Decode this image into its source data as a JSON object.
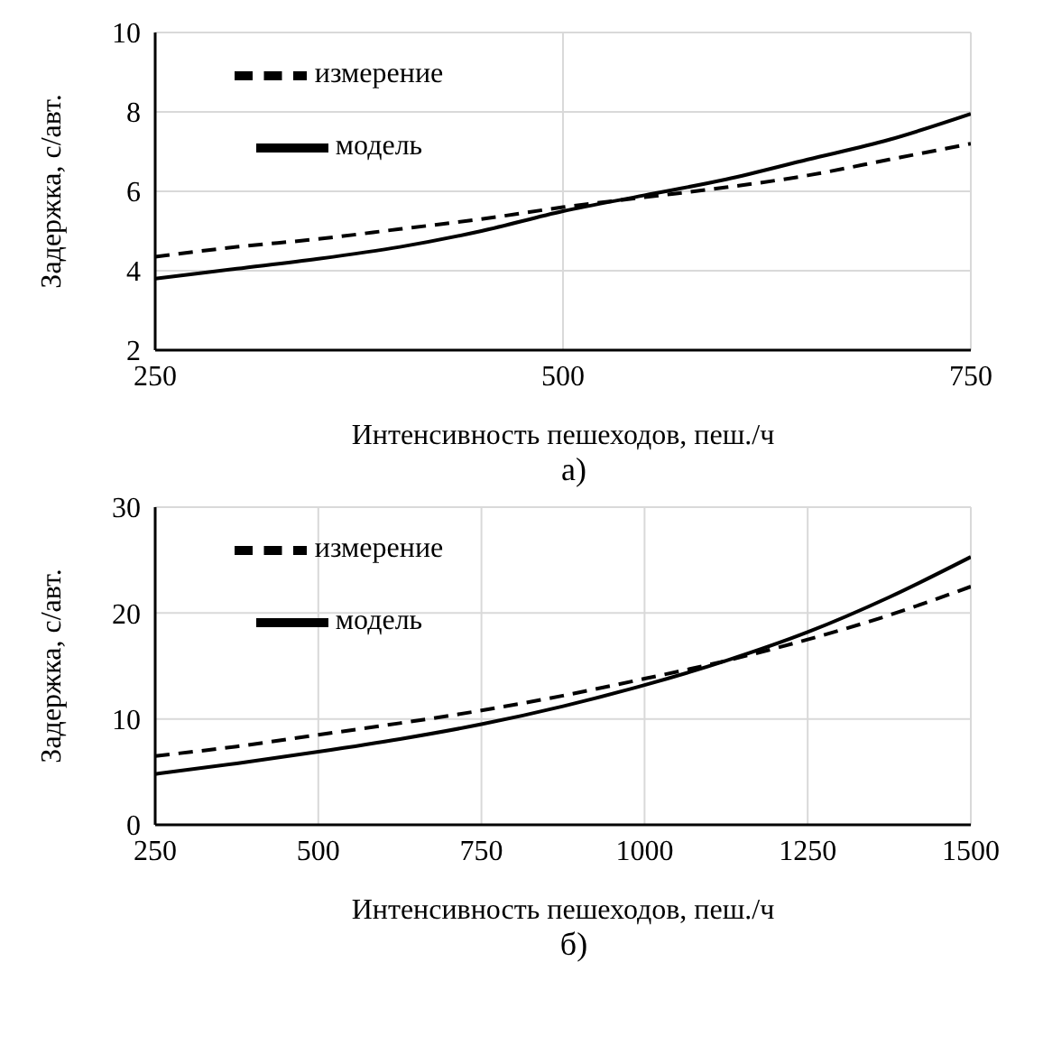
{
  "chart_data": [
    {
      "type": "line",
      "xlabel": "Интенсивность пешеходов, пеш./ч",
      "ylabel": "Задержка, с/авт.",
      "x": [
        250,
        300,
        350,
        400,
        450,
        500,
        550,
        600,
        650,
        700,
        750
      ],
      "series": [
        {
          "name": "измерение",
          "color": "#000000",
          "line_style": "dashed",
          "values": [
            4.35,
            4.6,
            4.8,
            5.05,
            5.3,
            5.6,
            5.85,
            6.1,
            6.4,
            6.8,
            7.2
          ]
        },
        {
          "name": "модель",
          "color": "#000000",
          "line_style": "solid",
          "values": [
            3.8,
            4.05,
            4.3,
            4.6,
            5.0,
            5.5,
            5.9,
            6.3,
            6.8,
            7.3,
            7.95
          ]
        }
      ],
      "xlim": [
        250,
        750
      ],
      "xticks": [
        250,
        500,
        750
      ],
      "ylim": [
        2,
        10
      ],
      "yticks": [
        2,
        4,
        6,
        8,
        10
      ],
      "grid": true,
      "legend": "top left",
      "marker": "none",
      "annotations": [
        "а)"
      ]
    },
    {
      "type": "line",
      "xlabel": "Интенсивность пешеходов, пеш./ч",
      "ylabel": "Задержка, с/авт.",
      "x": [
        250,
        375,
        500,
        625,
        750,
        875,
        1000,
        1125,
        1250,
        1375,
        1500
      ],
      "series": [
        {
          "name": "измерение",
          "color": "#000000",
          "line_style": "dashed",
          "values": [
            6.5,
            7.4,
            8.5,
            9.6,
            10.8,
            12.2,
            13.8,
            15.5,
            17.5,
            19.8,
            22.5
          ]
        },
        {
          "name": "модель",
          "color": "#000000",
          "line_style": "solid",
          "values": [
            4.8,
            5.8,
            6.9,
            8.1,
            9.5,
            11.2,
            13.2,
            15.5,
            18.2,
            21.5,
            25.3
          ]
        }
      ],
      "xlim": [
        250,
        1500
      ],
      "xticks": [
        250,
        500,
        750,
        1000,
        1250,
        1500
      ],
      "ylim": [
        0,
        30
      ],
      "yticks": [
        0,
        10,
        20,
        30
      ],
      "grid": true,
      "legend": "top left",
      "marker": "none",
      "annotations": [
        "б)"
      ]
    }
  ]
}
